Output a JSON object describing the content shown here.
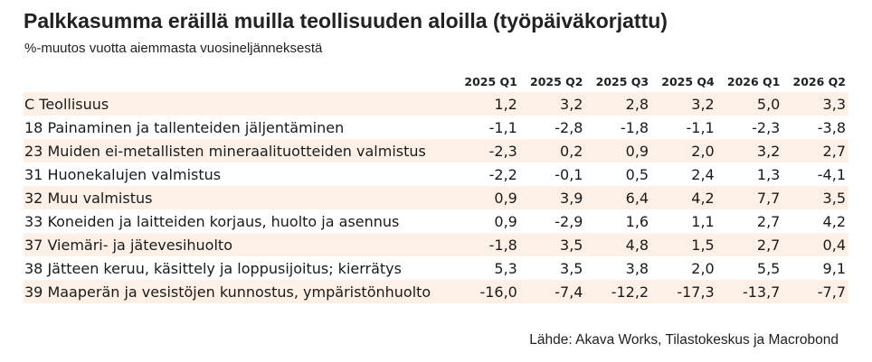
{
  "chart_data": {
    "type": "table",
    "title": "Palkkasumma eräillä muilla teollisuuden aloilla (työpäiväkorjattu)",
    "subtitle": "%-muutos vuotta aiemmasta vuosineljänneksestä",
    "columns": [
      "2025 Q1",
      "2025 Q2",
      "2025 Q3",
      "2025 Q4",
      "2026 Q1",
      "2026 Q2"
    ],
    "rows": [
      {
        "label": "C Teollisuus",
        "values": [
          "1,2",
          "3,2",
          "2,8",
          "3,2",
          "5,0",
          "3,3"
        ]
      },
      {
        "label": "18 Painaminen ja tallenteiden jäljentäminen",
        "values": [
          "-1,1",
          "-2,8",
          "-1,8",
          "-1,1",
          "-2,3",
          "-3,8"
        ]
      },
      {
        "label": "23 Muiden ei-metallisten mineraalituotteiden valmistus",
        "values": [
          "-2,3",
          "0,2",
          "0,9",
          "2,0",
          "3,2",
          "2,7"
        ]
      },
      {
        "label": "31 Huonekalujen valmistus",
        "values": [
          "-2,2",
          "-0,1",
          "0,5",
          "2,4",
          "1,3",
          "-4,1"
        ]
      },
      {
        "label": "32 Muu valmistus",
        "values": [
          "0,9",
          "3,9",
          "6,4",
          "4,2",
          "7,7",
          "3,5"
        ]
      },
      {
        "label": "33 Koneiden ja laitteiden korjaus, huolto ja asennus",
        "values": [
          "0,9",
          "-2,9",
          "1,6",
          "1,1",
          "2,7",
          "4,2"
        ]
      },
      {
        "label": "37 Viemäri- ja jätevesihuolto",
        "values": [
          "-1,8",
          "3,5",
          "4,8",
          "1,5",
          "2,7",
          "0,4"
        ]
      },
      {
        "label": "38 Jätteen keruu, käsittely ja loppusijoitus; kierrätys",
        "values": [
          "5,3",
          "3,5",
          "3,8",
          "2,0",
          "5,5",
          "9,1"
        ]
      },
      {
        "label": "39 Maaperän ja vesistöjen kunnostus, ympäristönhuolto",
        "values": [
          "-16,0",
          "-7,4",
          "-12,2",
          "-17,3",
          "-13,7",
          "-7,7"
        ]
      }
    ],
    "source": "Lähde: Akava Works, Tilastokeskus ja Macrobond",
    "colors": {
      "row_stripe": "#fdf1e7",
      "background": "#ffffff"
    }
  }
}
